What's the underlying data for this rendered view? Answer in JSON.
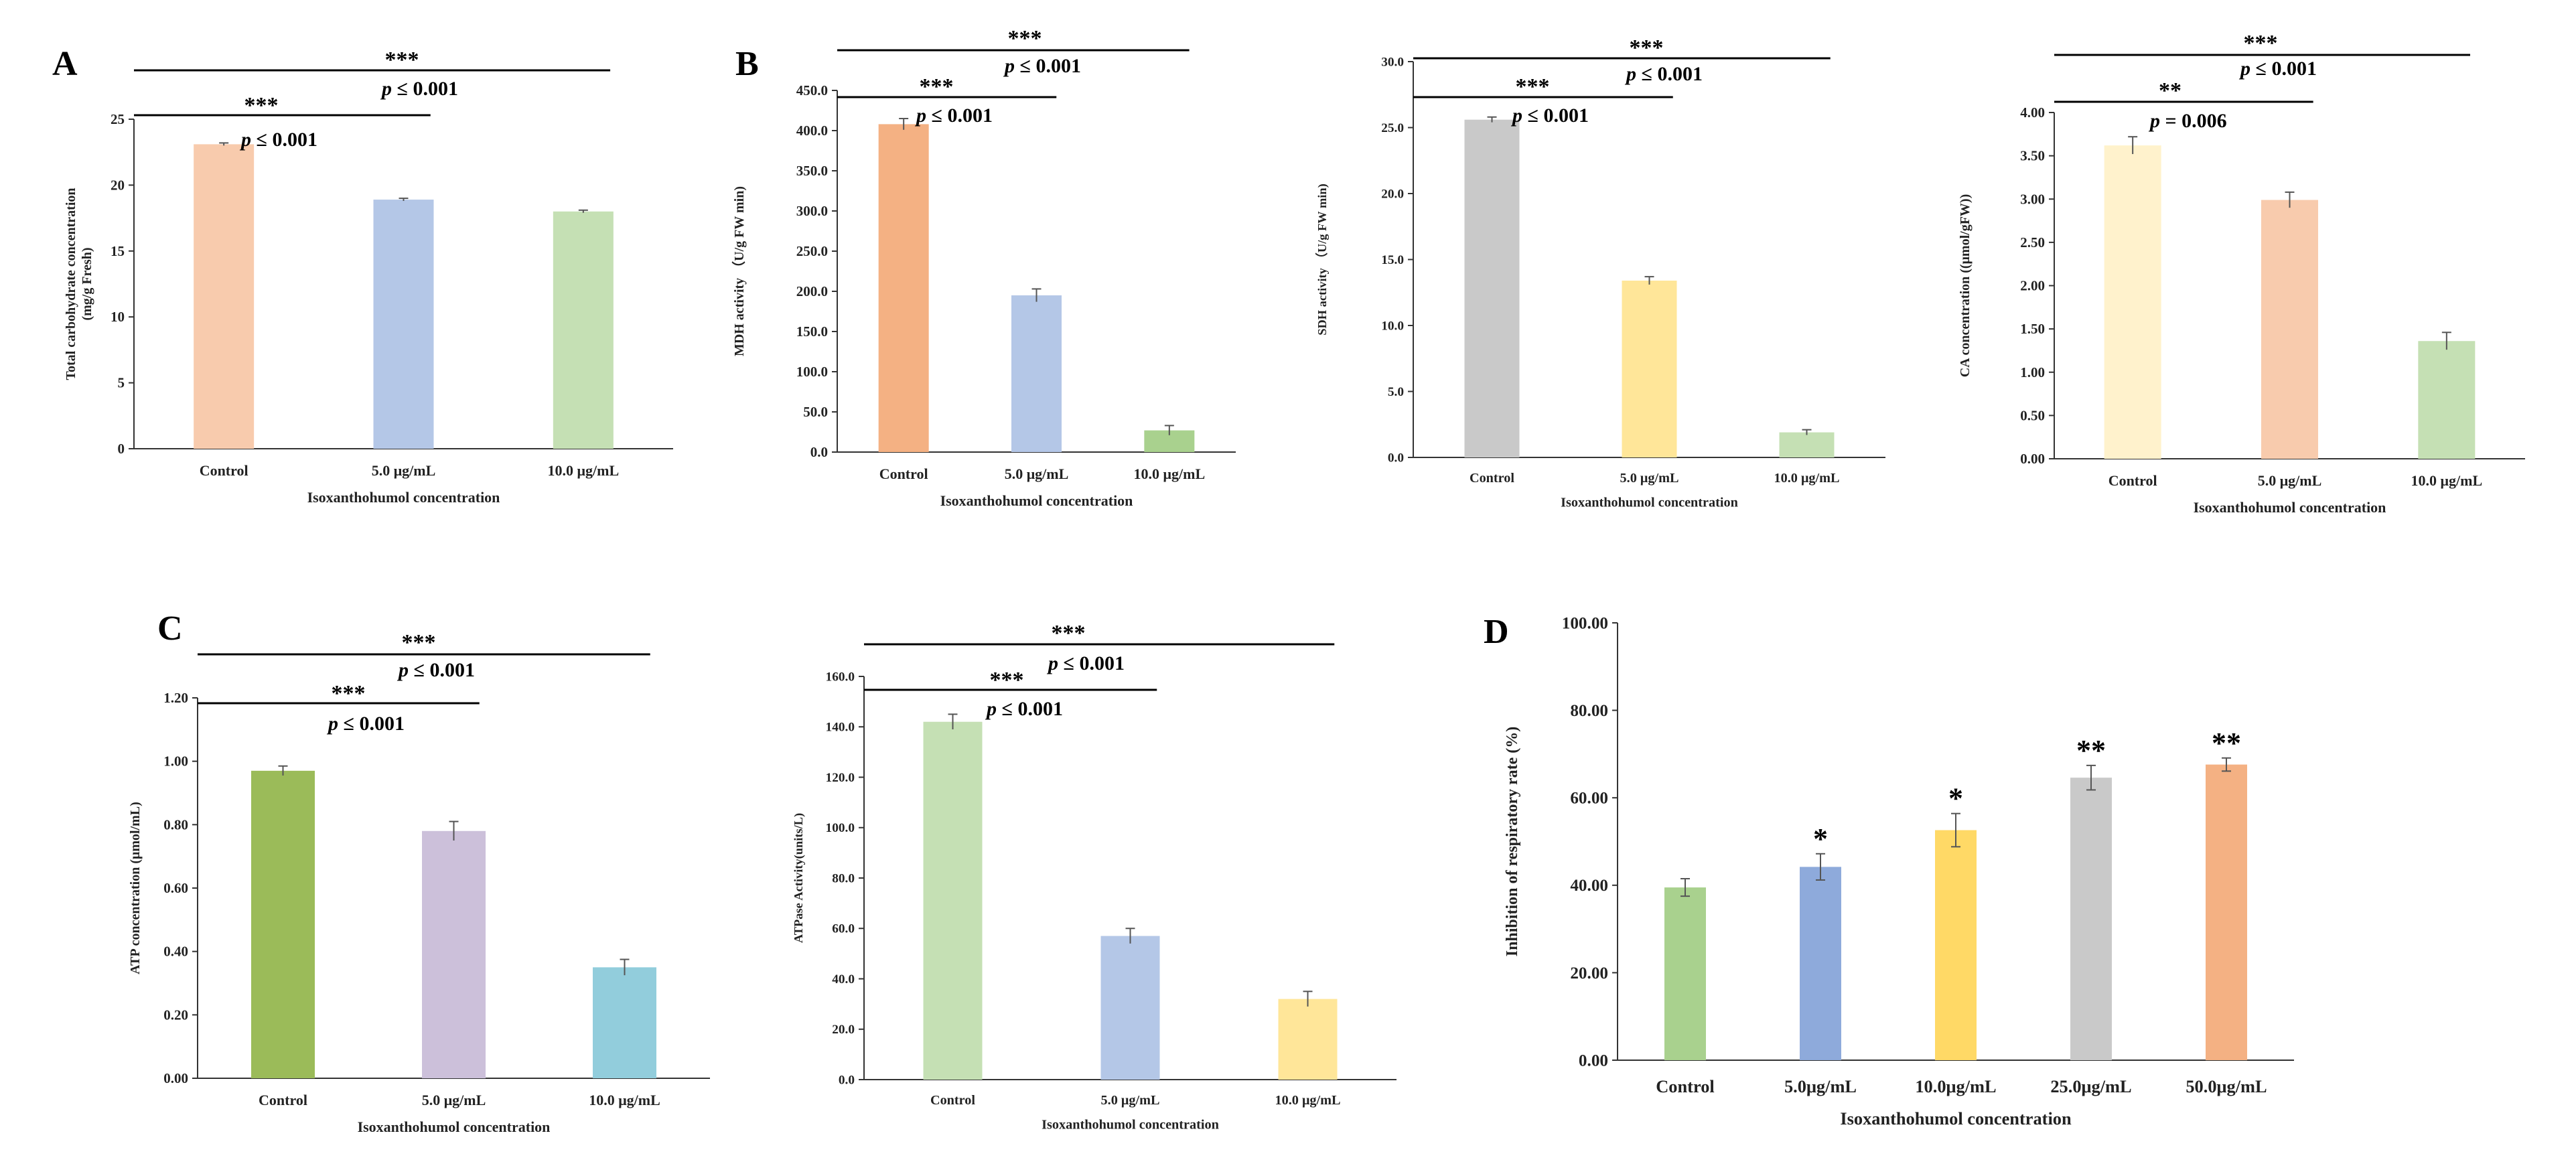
{
  "chart_data": [
    {
      "id": "A1",
      "panel": "A",
      "type": "bar",
      "categories": [
        "Control",
        "5.0 μg/mL",
        "10.0 μg/mL"
      ],
      "values": [
        23.1,
        18.9,
        18.0
      ],
      "errors": [
        0.1,
        0.1,
        0.1
      ],
      "colors": [
        "#f8cbad",
        "#b4c7e7",
        "#c5e0b4"
      ],
      "ylabel_lines": [
        "Total carbohydrate concentration",
        "(mg/g Fresh)"
      ],
      "xlabel": "Isoxanthohumol concentration",
      "ylim": [
        0,
        25
      ],
      "yticks": [
        "0",
        "5",
        "10",
        "15",
        "20",
        "25"
      ],
      "annotations": [
        {
          "from": 0,
          "to": 1,
          "stars": "***",
          "p_label": "p",
          "p_rest": " ≤ 0.001"
        },
        {
          "from": 0,
          "to": 2,
          "stars": "***",
          "p_label": "p",
          "p_rest": " ≤ 0.001"
        }
      ]
    },
    {
      "id": "B1",
      "panel": "B",
      "type": "bar",
      "categories": [
        "Control",
        "5.0 μg/mL",
        "10.0 μg/mL"
      ],
      "values": [
        408,
        195,
        27
      ],
      "errors": [
        7,
        8,
        6
      ],
      "colors": [
        "#f4b183",
        "#b4c7e7",
        "#a9d18e"
      ],
      "ylabel_lines": [
        "MDH activity （U/g FW min)"
      ],
      "xlabel": "Isoxanthohumol concentration",
      "ylim": [
        0,
        450
      ],
      "yticks": [
        "0.0",
        "50.0",
        "100.0",
        "150.0",
        "200.0",
        "250.0",
        "300.0",
        "350.0",
        "400.0",
        "450.0"
      ],
      "annotations": [
        {
          "from": 0,
          "to": 1,
          "stars": "***",
          "p_label": "p",
          "p_rest": " ≤ 0.001"
        },
        {
          "from": 0,
          "to": 2,
          "stars": "***",
          "p_label": "p",
          "p_rest": " ≤ 0.001"
        }
      ]
    },
    {
      "id": "B2",
      "panel": "",
      "type": "bar",
      "categories": [
        "Control",
        "5.0 μg/mL",
        "10.0 μg/mL"
      ],
      "values": [
        25.6,
        13.4,
        1.9
      ],
      "errors": [
        0.2,
        0.3,
        0.2
      ],
      "colors": [
        "#c9c9c9",
        "#ffe699",
        "#c5e0b4"
      ],
      "ylabel_lines": [
        "SDH activity （U/g FW min)"
      ],
      "xlabel": "Isoxanthohumol concentration",
      "ylim": [
        0,
        30
      ],
      "yticks": [
        "0.0",
        "5.0",
        "10.0",
        "15.0",
        "20.0",
        "25.0",
        "30.0"
      ],
      "annotations": [
        {
          "from": 0,
          "to": 1,
          "stars": "***",
          "p_label": "p",
          "p_rest": " ≤ 0.001"
        },
        {
          "from": 0,
          "to": 2,
          "stars": "***",
          "p_label": "p",
          "p_rest": " ≤ 0.001"
        }
      ]
    },
    {
      "id": "B3",
      "panel": "",
      "type": "bar",
      "categories": [
        "Control",
        "5.0 μg/mL",
        "10.0 μg/mL"
      ],
      "values": [
        3.62,
        2.99,
        1.36
      ],
      "errors": [
        0.1,
        0.09,
        0.1
      ],
      "colors": [
        "#fff2cc",
        "#f8cbad",
        "#c5e0b4"
      ],
      "ylabel_lines": [
        "CA concentration ((μmol/gFW))"
      ],
      "xlabel": "Isoxanthohumol concentration",
      "ylim": [
        0,
        4
      ],
      "yticks": [
        "0.00",
        "0.50",
        "1.00",
        "1.50",
        "2.00",
        "2.50",
        "3.00",
        "3.50",
        "4.00"
      ],
      "annotations": [
        {
          "from": 0,
          "to": 1,
          "stars": "**",
          "p_label": "p",
          "p_rest": " = 0.006"
        },
        {
          "from": 0,
          "to": 2,
          "stars": "***",
          "p_label": "p",
          "p_rest": " ≤ 0.001"
        }
      ]
    },
    {
      "id": "C1",
      "panel": "C",
      "type": "bar",
      "categories": [
        "Control",
        "5.0 μg/mL",
        "10.0 μg/mL"
      ],
      "values": [
        0.97,
        0.78,
        0.35
      ],
      "errors": [
        0.015,
        0.03,
        0.025
      ],
      "colors": [
        "#9bbb59",
        "#ccc0da",
        "#92cddc"
      ],
      "ylabel_lines": [
        "ATP concentration (μmol/mL)"
      ],
      "xlabel": "Isoxanthohumol concentration",
      "ylim": [
        0,
        1.2
      ],
      "yticks": [
        "0.00",
        "0.20",
        "0.40",
        "0.60",
        "0.80",
        "1.00",
        "1.20"
      ],
      "annotations": [
        {
          "from": 0,
          "to": 1,
          "stars": "***",
          "p_label": "p",
          "p_rest": " ≤ 0.001"
        },
        {
          "from": 0,
          "to": 2,
          "stars": "***",
          "p_label": "p",
          "p_rest": " ≤ 0.001"
        }
      ]
    },
    {
      "id": "C2",
      "panel": "",
      "type": "bar",
      "categories": [
        "Control",
        "5.0 μg/mL",
        "10.0 μg/mL"
      ],
      "values": [
        142,
        57,
        32
      ],
      "errors": [
        3,
        3,
        3
      ],
      "colors": [
        "#c5e0b4",
        "#b4c7e7",
        "#ffe699"
      ],
      "ylabel_lines": [
        "ATPase Activity(units/L)"
      ],
      "xlabel": "Isoxanthohumol concentration",
      "ylim": [
        0,
        160
      ],
      "yticks": [
        "0.0",
        "20.0",
        "40.0",
        "60.0",
        "80.0",
        "100.0",
        "120.0",
        "140.0",
        "160.0"
      ],
      "annotations": [
        {
          "from": 0,
          "to": 1,
          "stars": "***",
          "p_label": "p",
          "p_rest": " ≤ 0.001"
        },
        {
          "from": 0,
          "to": 2,
          "stars": "***",
          "p_label": "p",
          "p_rest": " ≤ 0.001"
        }
      ]
    },
    {
      "id": "D1",
      "panel": "D",
      "type": "bar",
      "categories": [
        "Control",
        "5.0μg/mL",
        "10.0μg/mL",
        "25.0μg/mL",
        "50.0μg/mL"
      ],
      "values": [
        39.5,
        44.2,
        52.6,
        64.6,
        67.6
      ],
      "errors": [
        2.0,
        3.0,
        3.8,
        2.8,
        1.5
      ],
      "colors": [
        "#a9d18e",
        "#8eaadb",
        "#ffd966",
        "#c9c9c9",
        "#f4b183"
      ],
      "bar_stars": [
        "",
        "*",
        "*",
        "**",
        "**"
      ],
      "ylabel_lines": [
        "Inhibition  of respiratory rate (%)"
      ],
      "xlabel": "Isoxanthohumol    concentration",
      "ylim": [
        0,
        100
      ],
      "yticks": [
        "0.00",
        "20.00",
        "40.00",
        "60.00",
        "80.00",
        "100.00"
      ],
      "annotations": []
    }
  ]
}
